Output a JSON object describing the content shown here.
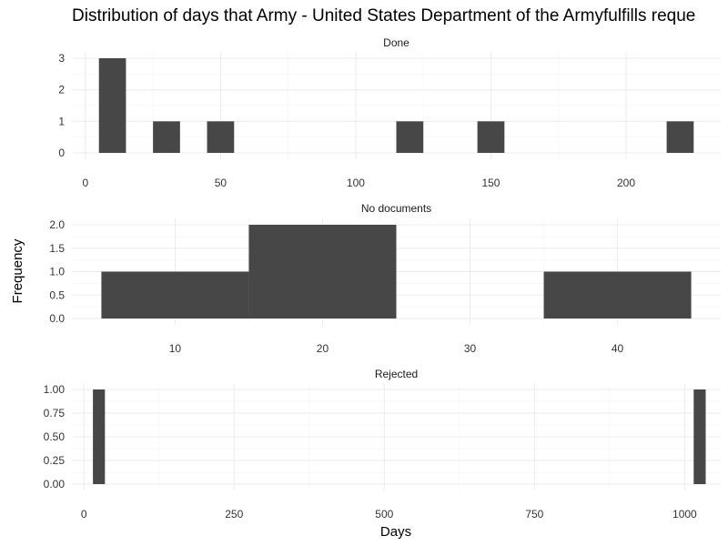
{
  "chart_data": {
    "type": "bar",
    "title": "Distribution of days that Army - United States Department of the Armyfulfills reque",
    "xlabel": "Days",
    "ylabel": "Frequency",
    "colors": {
      "bar": "#474747",
      "grid_major": "#ebebeb",
      "grid_minor": "#f5f5f5",
      "background": "#ffffff"
    },
    "grid": true,
    "facets": [
      {
        "name": "Done",
        "xlim": [
          -5,
          235
        ],
        "ylim": [
          0,
          3
        ],
        "xticks": [
          0,
          50,
          100,
          150,
          200
        ],
        "yticks": [
          0,
          1,
          2,
          3
        ],
        "ytick_labels": [
          "0",
          "1",
          "2",
          "3"
        ],
        "bins": [
          {
            "x0": 5,
            "x1": 15,
            "count": 3
          },
          {
            "x0": 25,
            "x1": 35,
            "count": 1
          },
          {
            "x0": 45,
            "x1": 55,
            "count": 1
          },
          {
            "x0": 115,
            "x1": 125,
            "count": 1
          },
          {
            "x0": 145,
            "x1": 155,
            "count": 1
          },
          {
            "x0": 215,
            "x1": 225,
            "count": 1
          }
        ]
      },
      {
        "name": "No documents",
        "xlim": [
          3,
          47
        ],
        "ylim": [
          0,
          2
        ],
        "xticks": [
          10,
          20,
          30,
          40
        ],
        "yticks": [
          0,
          0.5,
          1,
          1.5,
          2
        ],
        "ytick_labels": [
          "0.0",
          "0.5",
          "1.0",
          "1.5",
          "2.0"
        ],
        "bins": [
          {
            "x0": 5,
            "x1": 15,
            "count": 1
          },
          {
            "x0": 15,
            "x1": 25,
            "count": 2
          },
          {
            "x0": 35,
            "x1": 45,
            "count": 1
          }
        ]
      },
      {
        "name": "Rejected",
        "xlim": [
          -20,
          1060
        ],
        "ylim": [
          0,
          1
        ],
        "xticks": [
          0,
          250,
          500,
          750,
          1000
        ],
        "yticks": [
          0,
          0.25,
          0.5,
          0.75,
          1
        ],
        "ytick_labels": [
          "0.00",
          "0.25",
          "0.50",
          "0.75",
          "1.00"
        ],
        "bins": [
          {
            "x0": 15,
            "x1": 35,
            "count": 1
          },
          {
            "x0": 1015,
            "x1": 1035,
            "count": 1
          }
        ]
      }
    ]
  }
}
